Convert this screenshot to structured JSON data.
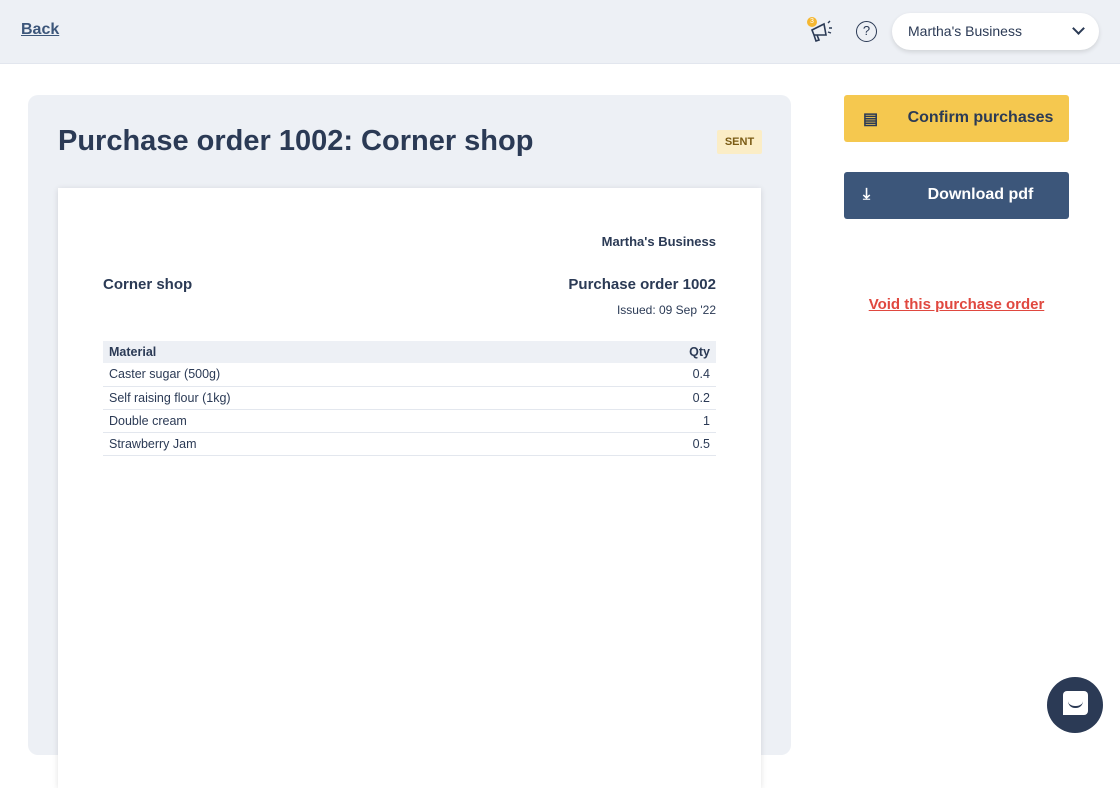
{
  "header": {
    "back_label": "Back",
    "notification_count": "3",
    "help_label": "?",
    "business_selector": "Martha's Business"
  },
  "order": {
    "title": "Purchase order 1002: Corner shop",
    "status": "SENT",
    "status_color": "#fbedc6"
  },
  "document": {
    "business": "Martha's Business",
    "supplier": "Corner shop",
    "po_title": "Purchase order 1002",
    "issued": "Issued: 09 Sep '22",
    "columns": [
      "Material",
      "Qty"
    ],
    "rows": [
      [
        "Caster sugar (500g)",
        "0.4"
      ],
      [
        "Self raising flour (1kg)",
        "0.2"
      ],
      [
        "Double cream",
        "1"
      ],
      [
        "Strawberry Jam",
        "0.5"
      ]
    ]
  },
  "actions": {
    "confirm_label": "Confirm purchases",
    "download_label": "Download pdf",
    "void_label": "Void this purchase order",
    "confirm_color": "#f5c84f",
    "download_color": "#3c567a",
    "void_color": "#e0483f"
  }
}
